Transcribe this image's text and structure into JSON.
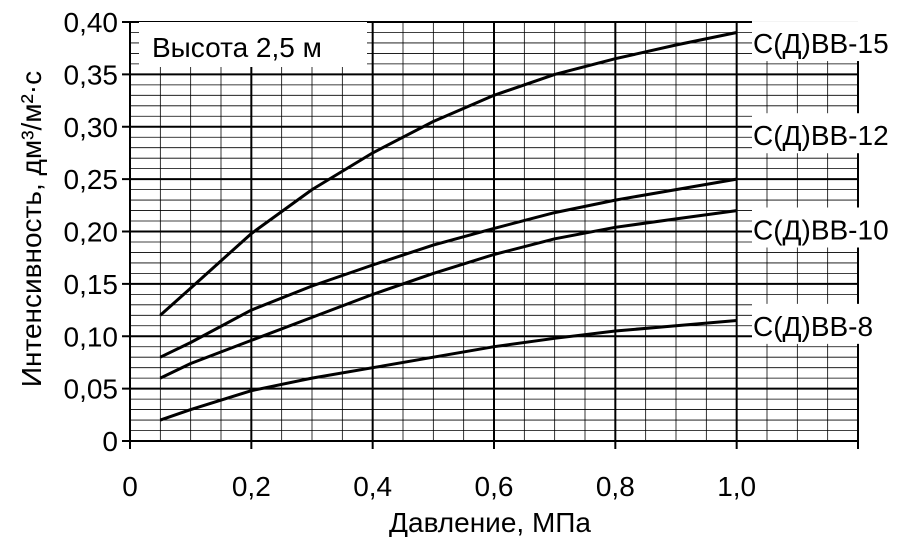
{
  "chart_data": {
    "type": "line",
    "annotation": "Высота 2,5 м",
    "xlabel": "Давление, МПа",
    "ylabel": "Интенсивность, дм³/м²·с",
    "xlim": [
      0,
      1.2
    ],
    "ylim": [
      0,
      0.4
    ],
    "grid": true,
    "xticks": [
      {
        "value": 0,
        "label": "0"
      },
      {
        "value": 0.2,
        "label": "0,2"
      },
      {
        "value": 0.4,
        "label": "0,4"
      },
      {
        "value": 0.6,
        "label": "0,6"
      },
      {
        "value": 0.8,
        "label": "0,8"
      },
      {
        "value": 1.0,
        "label": "1,0"
      }
    ],
    "yticks": [
      {
        "value": 0,
        "label": "0"
      },
      {
        "value": 0.05,
        "label": "0,05"
      },
      {
        "value": 0.1,
        "label": "0,10"
      },
      {
        "value": 0.15,
        "label": "0,15"
      },
      {
        "value": 0.2,
        "label": "0,20"
      },
      {
        "value": 0.25,
        "label": "0,25"
      },
      {
        "value": 0.3,
        "label": "0,30"
      },
      {
        "value": 0.35,
        "label": "0,35"
      },
      {
        "value": 0.4,
        "label": "0,40"
      }
    ],
    "curve_labels": [
      {
        "text": "С(Д)ВВ-15",
        "y": 0.378
      },
      {
        "text": "С(Д)ВВ-12",
        "y": 0.29
      },
      {
        "text": "С(Д)ВВ-10",
        "y": 0.2
      },
      {
        "text": "С(Д)ВВ-8",
        "y": 0.108
      }
    ],
    "x": [
      0.05,
      0.1,
      0.2,
      0.3,
      0.4,
      0.5,
      0.6,
      0.7,
      0.8,
      0.9,
      1.0
    ],
    "series": [
      {
        "values": [
          0.12,
          0.146,
          0.198,
          0.24,
          0.275,
          0.305,
          0.33,
          0.35,
          0.365,
          0.378,
          0.39
        ]
      },
      {
        "values": [
          0.08,
          0.094,
          0.125,
          0.148,
          0.168,
          0.187,
          0.203,
          0.218,
          0.23,
          0.24,
          0.25
        ]
      },
      {
        "values": [
          0.06,
          0.074,
          0.096,
          0.118,
          0.14,
          0.16,
          0.178,
          0.193,
          0.204,
          0.212,
          0.22
        ]
      },
      {
        "values": [
          0.02,
          0.03,
          0.048,
          0.06,
          0.07,
          0.08,
          0.09,
          0.098,
          0.105,
          0.11,
          0.115
        ]
      }
    ]
  }
}
